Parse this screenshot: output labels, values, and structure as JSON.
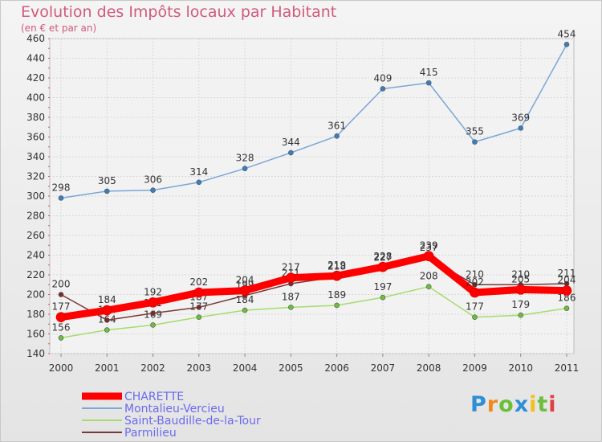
{
  "title": "Evolution des Impôts locaux par Habitant",
  "subtitle": "(en € et par an)",
  "logo": {
    "text": "Proxiti",
    "letters": [
      {
        "ch": "P",
        "color": "#2e8fd6"
      },
      {
        "ch": "r",
        "color": "#f08a1c"
      },
      {
        "ch": "o",
        "color": "#6cbf3a"
      },
      {
        "ch": "x",
        "color": "#2e8fd6"
      },
      {
        "ch": "i",
        "color": "#f0c11c"
      },
      {
        "ch": "t",
        "color": "#6cbf3a"
      },
      {
        "ch": "i",
        "color": "#e04040"
      }
    ]
  },
  "chart_data": {
    "type": "line",
    "title": "Evolution des Impôts locaux par Habitant",
    "subtitle": "(en € et par an)",
    "xlabel": "",
    "ylabel": "",
    "ylim": [
      140,
      460
    ],
    "yticks": [
      "140",
      "160",
      "180",
      "200",
      "220",
      "240",
      "260",
      "280",
      "300",
      "320",
      "340",
      "360",
      "380",
      "400",
      "420",
      "440",
      "460"
    ],
    "grid": true,
    "legend_position": "bottom-left",
    "categories": [
      "2000",
      "2001",
      "2002",
      "2003",
      "2004",
      "2005",
      "2006",
      "2007",
      "2008",
      "2009",
      "2010",
      "2011"
    ],
    "series": [
      {
        "name": "Montalieu-Vercieu",
        "color": "#7aa6d8",
        "marker": "#3a7ec0",
        "values": [
          298,
          305,
          306,
          314,
          328,
          344,
          361,
          409,
          415,
          355,
          369,
          454
        ],
        "labels": [
          "298",
          "305",
          "306",
          "314",
          "328",
          "344",
          "361",
          "409",
          "415",
          "355",
          "369",
          "454"
        ]
      },
      {
        "name": "Saint-Baudille-de-la-Tour",
        "color": "#a5dc6e",
        "marker": "#6cbf3a",
        "values": [
          156,
          164,
          169,
          177,
          184,
          187,
          189,
          197,
          208,
          177,
          179,
          186
        ],
        "labels": [
          "156",
          "164",
          "169",
          "177",
          "184",
          "187",
          "189",
          "197",
          "208",
          "177",
          "179",
          "186"
        ]
      },
      {
        "name": "Parmilieu",
        "color": "#7a3a3a",
        "marker": "#7a2a2a",
        "values": [
          200,
          174,
          181,
          187,
          199,
          211,
          218,
          227,
          237,
          210,
          210,
          211
        ],
        "labels": [
          "200",
          "174",
          "181",
          "187",
          "199",
          "211",
          "218",
          "227",
          "237",
          "210",
          "210",
          "211"
        ]
      },
      {
        "name": "CHARETTE",
        "color": "#ff0000",
        "marker": "#ff0000",
        "values": [
          177,
          184,
          192,
          202,
          204,
          217,
          219,
          228,
          239,
          202,
          205,
          204
        ],
        "labels": [
          "177",
          "184",
          "192",
          "202",
          "204",
          "217",
          "219",
          "228",
          "239",
          "202",
          "205",
          "204"
        ]
      }
    ],
    "legend": [
      {
        "name": "CHARETTE",
        "color": "#ff0000"
      },
      {
        "name": "Montalieu-Vercieu",
        "color": "#7aa6d8"
      },
      {
        "name": "Saint-Baudille-de-la-Tour",
        "color": "#a5dc6e"
      },
      {
        "name": "Parmilieu",
        "color": "#7a3a3a"
      }
    ]
  }
}
